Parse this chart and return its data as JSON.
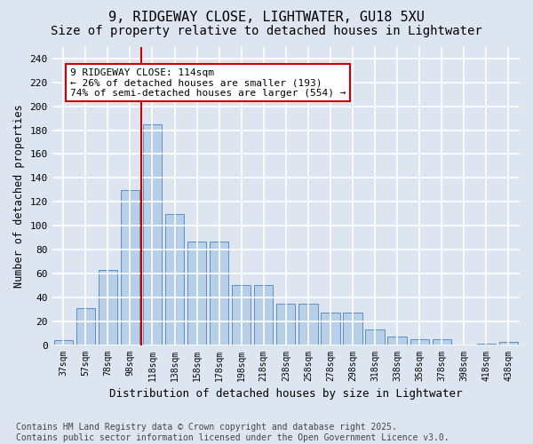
{
  "title1": "9, RIDGEWAY CLOSE, LIGHTWATER, GU18 5XU",
  "title2": "Size of property relative to detached houses in Lightwater",
  "xlabel": "Distribution of detached houses by size in Lightwater",
  "ylabel": "Number of detached properties",
  "bin_labels": [
    "37sqm",
    "57sqm",
    "78sqm",
    "98sqm",
    "118sqm",
    "138sqm",
    "158sqm",
    "178sqm",
    "198sqm",
    "218sqm",
    "238sqm",
    "258sqm",
    "278sqm",
    "298sqm",
    "318sqm",
    "338sqm",
    "358sqm",
    "378sqm",
    "398sqm",
    "418sqm",
    "438sqm"
  ],
  "bar_values": [
    4,
    31,
    63,
    130,
    185,
    110,
    87,
    87,
    50,
    50,
    35,
    35,
    27,
    27,
    13,
    7,
    5,
    5,
    0,
    1,
    3
  ],
  "bar_color": "#b8cfe8",
  "bar_edge_color": "#5b8ec4",
  "background_color": "#dde6f0",
  "grid_color": "#ffffff",
  "vline_color": "#cc0000",
  "vline_index": 3.5,
  "annotation_text": "9 RIDGEWAY CLOSE: 114sqm\n← 26% of detached houses are smaller (193)\n74% of semi-detached houses are larger (554) →",
  "annotation_box_facecolor": "#ffffff",
  "annotation_box_edgecolor": "#cc0000",
  "ylim_max": 250,
  "yticks": [
    0,
    20,
    40,
    60,
    80,
    100,
    120,
    140,
    160,
    180,
    200,
    220,
    240
  ],
  "footer": "Contains HM Land Registry data © Crown copyright and database right 2025.\nContains public sector information licensed under the Open Government Licence v3.0.",
  "title1_fontsize": 11,
  "title2_fontsize": 10,
  "tick_fontsize": 7,
  "ylabel_fontsize": 8.5,
  "xlabel_fontsize": 9,
  "annot_fontsize": 8,
  "footer_fontsize": 7
}
